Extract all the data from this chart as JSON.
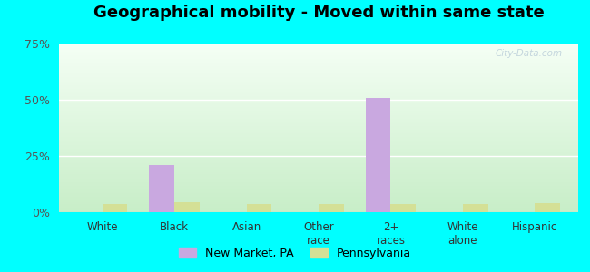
{
  "title": "Geographical mobility - Moved within same state",
  "categories": [
    "White",
    "Black",
    "Asian",
    "Other\nrace",
    "2+\nraces",
    "White\nalone",
    "Hispanic"
  ],
  "new_market_values": [
    0.0,
    21.0,
    0.0,
    0.0,
    51.0,
    0.0,
    0.0
  ],
  "pennsylvania_values": [
    3.5,
    4.5,
    3.5,
    3.5,
    3.5,
    3.5,
    4.0
  ],
  "new_market_color": "#c9a8e0",
  "pennsylvania_color": "#d4e096",
  "ylim": [
    0,
    75
  ],
  "yticks": [
    0,
    25,
    50,
    75
  ],
  "ytick_labels": [
    "0%",
    "25%",
    "50%",
    "75%"
  ],
  "grad_top": "#f5fff5",
  "grad_bottom": "#c8eec8",
  "outer_bg": "#00ffff",
  "bar_width": 0.35,
  "legend_labels": [
    "New Market, PA",
    "Pennsylvania"
  ],
  "watermark": "City-Data.com"
}
